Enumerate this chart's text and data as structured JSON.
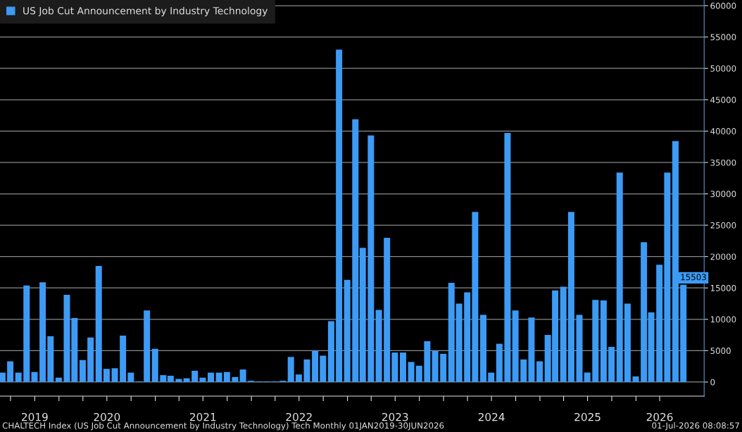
{
  "chart_data": {
    "type": "bar",
    "x": [
      "2019-05-31",
      "2019-06-30",
      "2019-07-31",
      "2019-08-31",
      "2019-09-30",
      "2019-10-31",
      "2019-11-30",
      "2019-12-31",
      "2020-01-31",
      "2020-02-29",
      "2020-03-31",
      "2020-04-30",
      "2020-05-31",
      "2020-06-30",
      "2020-07-31",
      "2020-08-31",
      "2020-09-30",
      "2020-10-31",
      "2020-11-30",
      "2020-12-31",
      "2021-01-31",
      "2021-02-28",
      "2021-03-31",
      "2021-04-30",
      "2021-05-31",
      "2021-06-30",
      "2021-07-31",
      "2021-08-31",
      "2021-09-30",
      "2021-10-31",
      "2021-11-30",
      "2021-12-31",
      "2022-01-31",
      "2022-02-28",
      "2022-03-31",
      "2022-04-30",
      "2022-05-31",
      "2022-06-30",
      "2022-07-31",
      "2022-08-31",
      "2022-09-30",
      "2022-10-31",
      "2022-11-30",
      "2022-12-31",
      "2023-01-31",
      "2023-02-28",
      "2023-03-31",
      "2023-04-30",
      "2023-05-31",
      "2023-06-30",
      "2023-07-31",
      "2023-08-31",
      "2023-09-30",
      "2023-10-31",
      "2023-11-30",
      "2023-12-31",
      "2024-01-31",
      "2024-02-29",
      "2024-03-31",
      "2024-04-30",
      "2024-05-31",
      "2024-06-30",
      "2024-07-31",
      "2024-08-31",
      "2024-09-30",
      "2024-10-31",
      "2024-11-30",
      "2024-12-31",
      "2025-01-31",
      "2025-02-28",
      "2025-03-31",
      "2025-04-30",
      "2025-05-31",
      "2025-06-30",
      "2025-07-31",
      "2025-08-31",
      "2025-09-30",
      "2025-10-31",
      "2025-11-30",
      "2025-12-31",
      "2026-01-31",
      "2026-02-28",
      "2026-03-31",
      "2026-04-30",
      "2026-05-31",
      "2026-06-30"
    ],
    "series": [
      {
        "name": "US Job Cut Announcement by Industry Technology",
        "color": "#3d9bf5",
        "values": [
          1500,
          3300,
          1500,
          15400,
          1600,
          15900,
          7300,
          700,
          13900,
          10200,
          3500,
          7100,
          18500,
          2100,
          2200,
          7400,
          1500,
          100,
          11400,
          5300,
          1100,
          1000,
          500,
          600,
          1800,
          700,
          1500,
          1500,
          1600,
          800,
          2000,
          200,
          100,
          100,
          100,
          200,
          4000,
          1200,
          3600,
          5000,
          4200,
          9700,
          53000,
          16300,
          41900,
          21400,
          39300,
          11500,
          23000,
          4700,
          4700,
          3200,
          2600,
          6500,
          5000,
          4500,
          15800,
          12500,
          14300,
          27100,
          10700,
          1500,
          6100,
          39700,
          11400,
          3600,
          10300,
          3300,
          7500,
          14600,
          15200,
          27100,
          10700,
          1500,
          13100,
          13000,
          5600,
          33400,
          12500,
          900,
          22300,
          11100,
          18700,
          33400,
          38400,
          15503
        ],
        "value_labels": [
          null,
          null,
          null,
          null,
          null,
          null,
          null,
          null,
          null,
          null,
          null,
          null,
          null,
          null,
          null,
          null,
          null,
          null,
          null,
          null,
          null,
          null,
          null,
          null,
          null,
          null,
          null,
          null,
          null,
          null,
          null,
          null,
          null,
          null,
          null,
          null,
          null,
          null,
          null,
          null,
          null,
          null,
          null,
          null,
          null,
          null,
          null,
          null,
          null,
          null,
          null,
          null,
          null,
          null,
          null,
          null,
          null,
          null,
          null,
          null,
          null,
          null,
          null,
          null,
          null,
          null,
          null,
          null,
          null,
          null,
          null,
          null,
          null,
          null,
          null,
          null,
          null,
          null,
          null,
          null,
          null,
          null,
          null,
          null,
          null,
          "15503"
        ]
      }
    ],
    "xlim": [
      "2019-05-22",
      "2026-09-17"
    ],
    "xticks": [
      {
        "value": "2019-07-01",
        "label": null
      },
      {
        "value": "2019-10-01",
        "label": "2019"
      },
      {
        "value": "2020-01-01",
        "label": null
      },
      {
        "value": "2020-04-01",
        "label": null
      },
      {
        "value": "2020-07-01",
        "label": "2020"
      },
      {
        "value": "2020-10-01",
        "label": null
      },
      {
        "value": "2021-01-01",
        "label": null
      },
      {
        "value": "2021-04-01",
        "label": null
      },
      {
        "value": "2021-07-01",
        "label": "2021"
      },
      {
        "value": "2021-10-01",
        "label": null
      },
      {
        "value": "2022-01-01",
        "label": null
      },
      {
        "value": "2022-04-01",
        "label": null
      },
      {
        "value": "2022-07-01",
        "label": "2022"
      },
      {
        "value": "2022-10-01",
        "label": null
      },
      {
        "value": "2023-01-01",
        "label": null
      },
      {
        "value": "2023-04-01",
        "label": null
      },
      {
        "value": "2023-07-01",
        "label": "2023"
      },
      {
        "value": "2023-10-01",
        "label": null
      },
      {
        "value": "2024-01-01",
        "label": null
      },
      {
        "value": "2024-04-01",
        "label": null
      },
      {
        "value": "2024-07-01",
        "label": "2024"
      },
      {
        "value": "2024-10-01",
        "label": null
      },
      {
        "value": "2025-01-01",
        "label": null
      },
      {
        "value": "2025-04-01",
        "label": null
      },
      {
        "value": "2025-07-01",
        "label": "2025"
      },
      {
        "value": "2025-10-01",
        "label": null
      },
      {
        "value": "2026-01-01",
        "label": null
      },
      {
        "value": "2026-04-01",
        "label": "2026"
      }
    ],
    "ylim": [
      -2250,
      60900
    ],
    "yticks": [
      0,
      5000,
      10000,
      15000,
      20000,
      25000,
      30000,
      35000,
      40000,
      45000,
      50000,
      55000,
      60000
    ],
    "grid": "y",
    "legend": "top left",
    "annotations": [
      "CHALTECH Index (US Job Cut Announcement by Industry Technology) Tech Monthly 01JAN2019-30JUN2026",
      "01-Jul-2026 08:08:57"
    ]
  }
}
